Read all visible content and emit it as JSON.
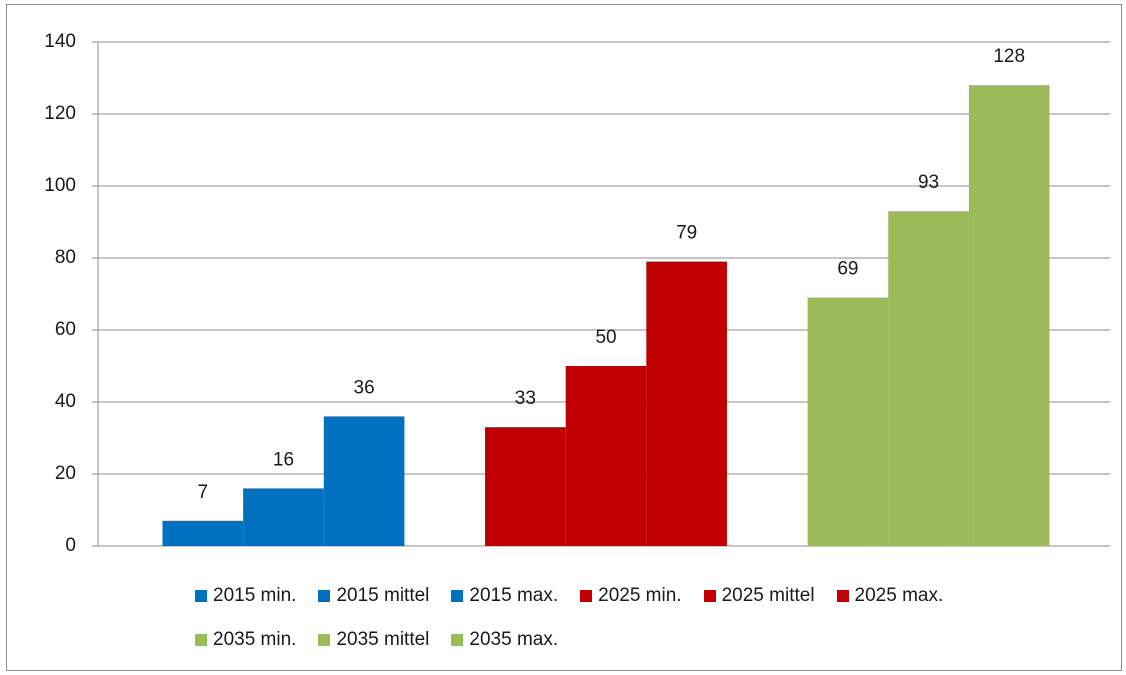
{
  "chart_data": {
    "type": "bar",
    "series": [
      {
        "name": "2015 min.",
        "color": "#0070c0",
        "values": [
          7
        ]
      },
      {
        "name": "2015 mittel",
        "color": "#0070c0",
        "values": [
          16
        ]
      },
      {
        "name": "2015 max.",
        "color": "#0070c0",
        "values": [
          36
        ]
      },
      {
        "name": "2025 min.",
        "color": "#c00000",
        "values": [
          33
        ]
      },
      {
        "name": "2025 mittel",
        "color": "#c00000",
        "values": [
          50
        ]
      },
      {
        "name": "2025 max.",
        "color": "#c00000",
        "values": [
          79
        ]
      },
      {
        "name": "2035 min.",
        "color": "#9bbb59",
        "values": [
          69
        ]
      },
      {
        "name": "2035 mittel",
        "color": "#9bbb59",
        "values": [
          93
        ]
      },
      {
        "name": "2035 max.",
        "color": "#9bbb59",
        "values": [
          128
        ]
      }
    ],
    "ylim": [
      0,
      140
    ],
    "yticks": [
      0,
      20,
      40,
      60,
      80,
      100,
      120,
      140
    ],
    "grid": true,
    "legend": "bottom"
  }
}
